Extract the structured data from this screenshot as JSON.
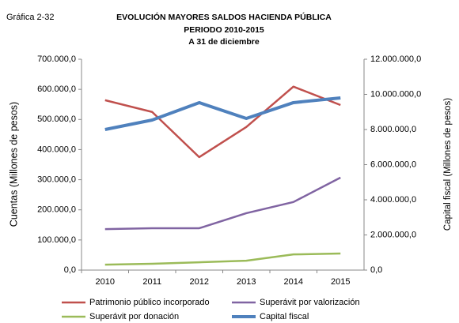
{
  "chart_data": {
    "type": "line",
    "label": "Gráfica 2-32",
    "title": [
      "EVOLUCIÓN MAYORES SALDOS HACIENDA PÚBLICA",
      "PERIODO 2010-2015",
      "A 31 de diciembre"
    ],
    "y_label": "Cuentas (Millones de pesos)",
    "y2_label": "Capital fiscal (Millones de pesos)",
    "categories": [
      "2010",
      "2011",
      "2012",
      "2013",
      "2014",
      "2015"
    ],
    "ylim": [
      0,
      700000
    ],
    "yticks": [
      {
        "value": 0,
        "label": "0,0"
      },
      {
        "value": 100000,
        "label": "100.000,0"
      },
      {
        "value": 200000,
        "label": "200.000,0"
      },
      {
        "value": 300000,
        "label": "300.000,0"
      },
      {
        "value": 400000,
        "label": "400.000,0"
      },
      {
        "value": 500000,
        "label": "500.000,0"
      },
      {
        "value": 600000,
        "label": "600.000,0"
      },
      {
        "value": 700000,
        "label": "700.000,0"
      }
    ],
    "y2lim": [
      0,
      12000000
    ],
    "y2ticks": [
      {
        "value": 0,
        "label": "0,0"
      },
      {
        "value": 2000000,
        "label": "2.000.000,0"
      },
      {
        "value": 4000000,
        "label": "4.000.000,0"
      },
      {
        "value": 6000000,
        "label": "6.000.000,0"
      },
      {
        "value": 8000000,
        "label": "8.000.000,0"
      },
      {
        "value": 10000000,
        "label": "10.000.000,0"
      },
      {
        "value": 12000000,
        "label": "12.000.000,0"
      }
    ],
    "series": [
      {
        "name": "Patrimonio público incorporado",
        "color": "#c0504d",
        "line_width": 2.5,
        "values": [
          564000,
          525000,
          375000,
          475000,
          609000,
          548000
        ]
      },
      {
        "name": "Superávit por valorización",
        "color": "#8064a2",
        "line_width": 2.5,
        "values": [
          136000,
          139000,
          139000,
          189000,
          226000,
          307000
        ]
      },
      {
        "name": "Superávit por donación",
        "color": "#9bbb59",
        "line_width": 2.5,
        "values": [
          18000,
          21000,
          26000,
          31000,
          52000,
          55000
        ]
      },
      {
        "name": "Capital fiscal",
        "color": "#4f81bd",
        "line_width": 4,
        "axis": "y2",
        "values": [
          8000000,
          8540000,
          9530000,
          8630000,
          9530000,
          9800000
        ]
      }
    ]
  }
}
